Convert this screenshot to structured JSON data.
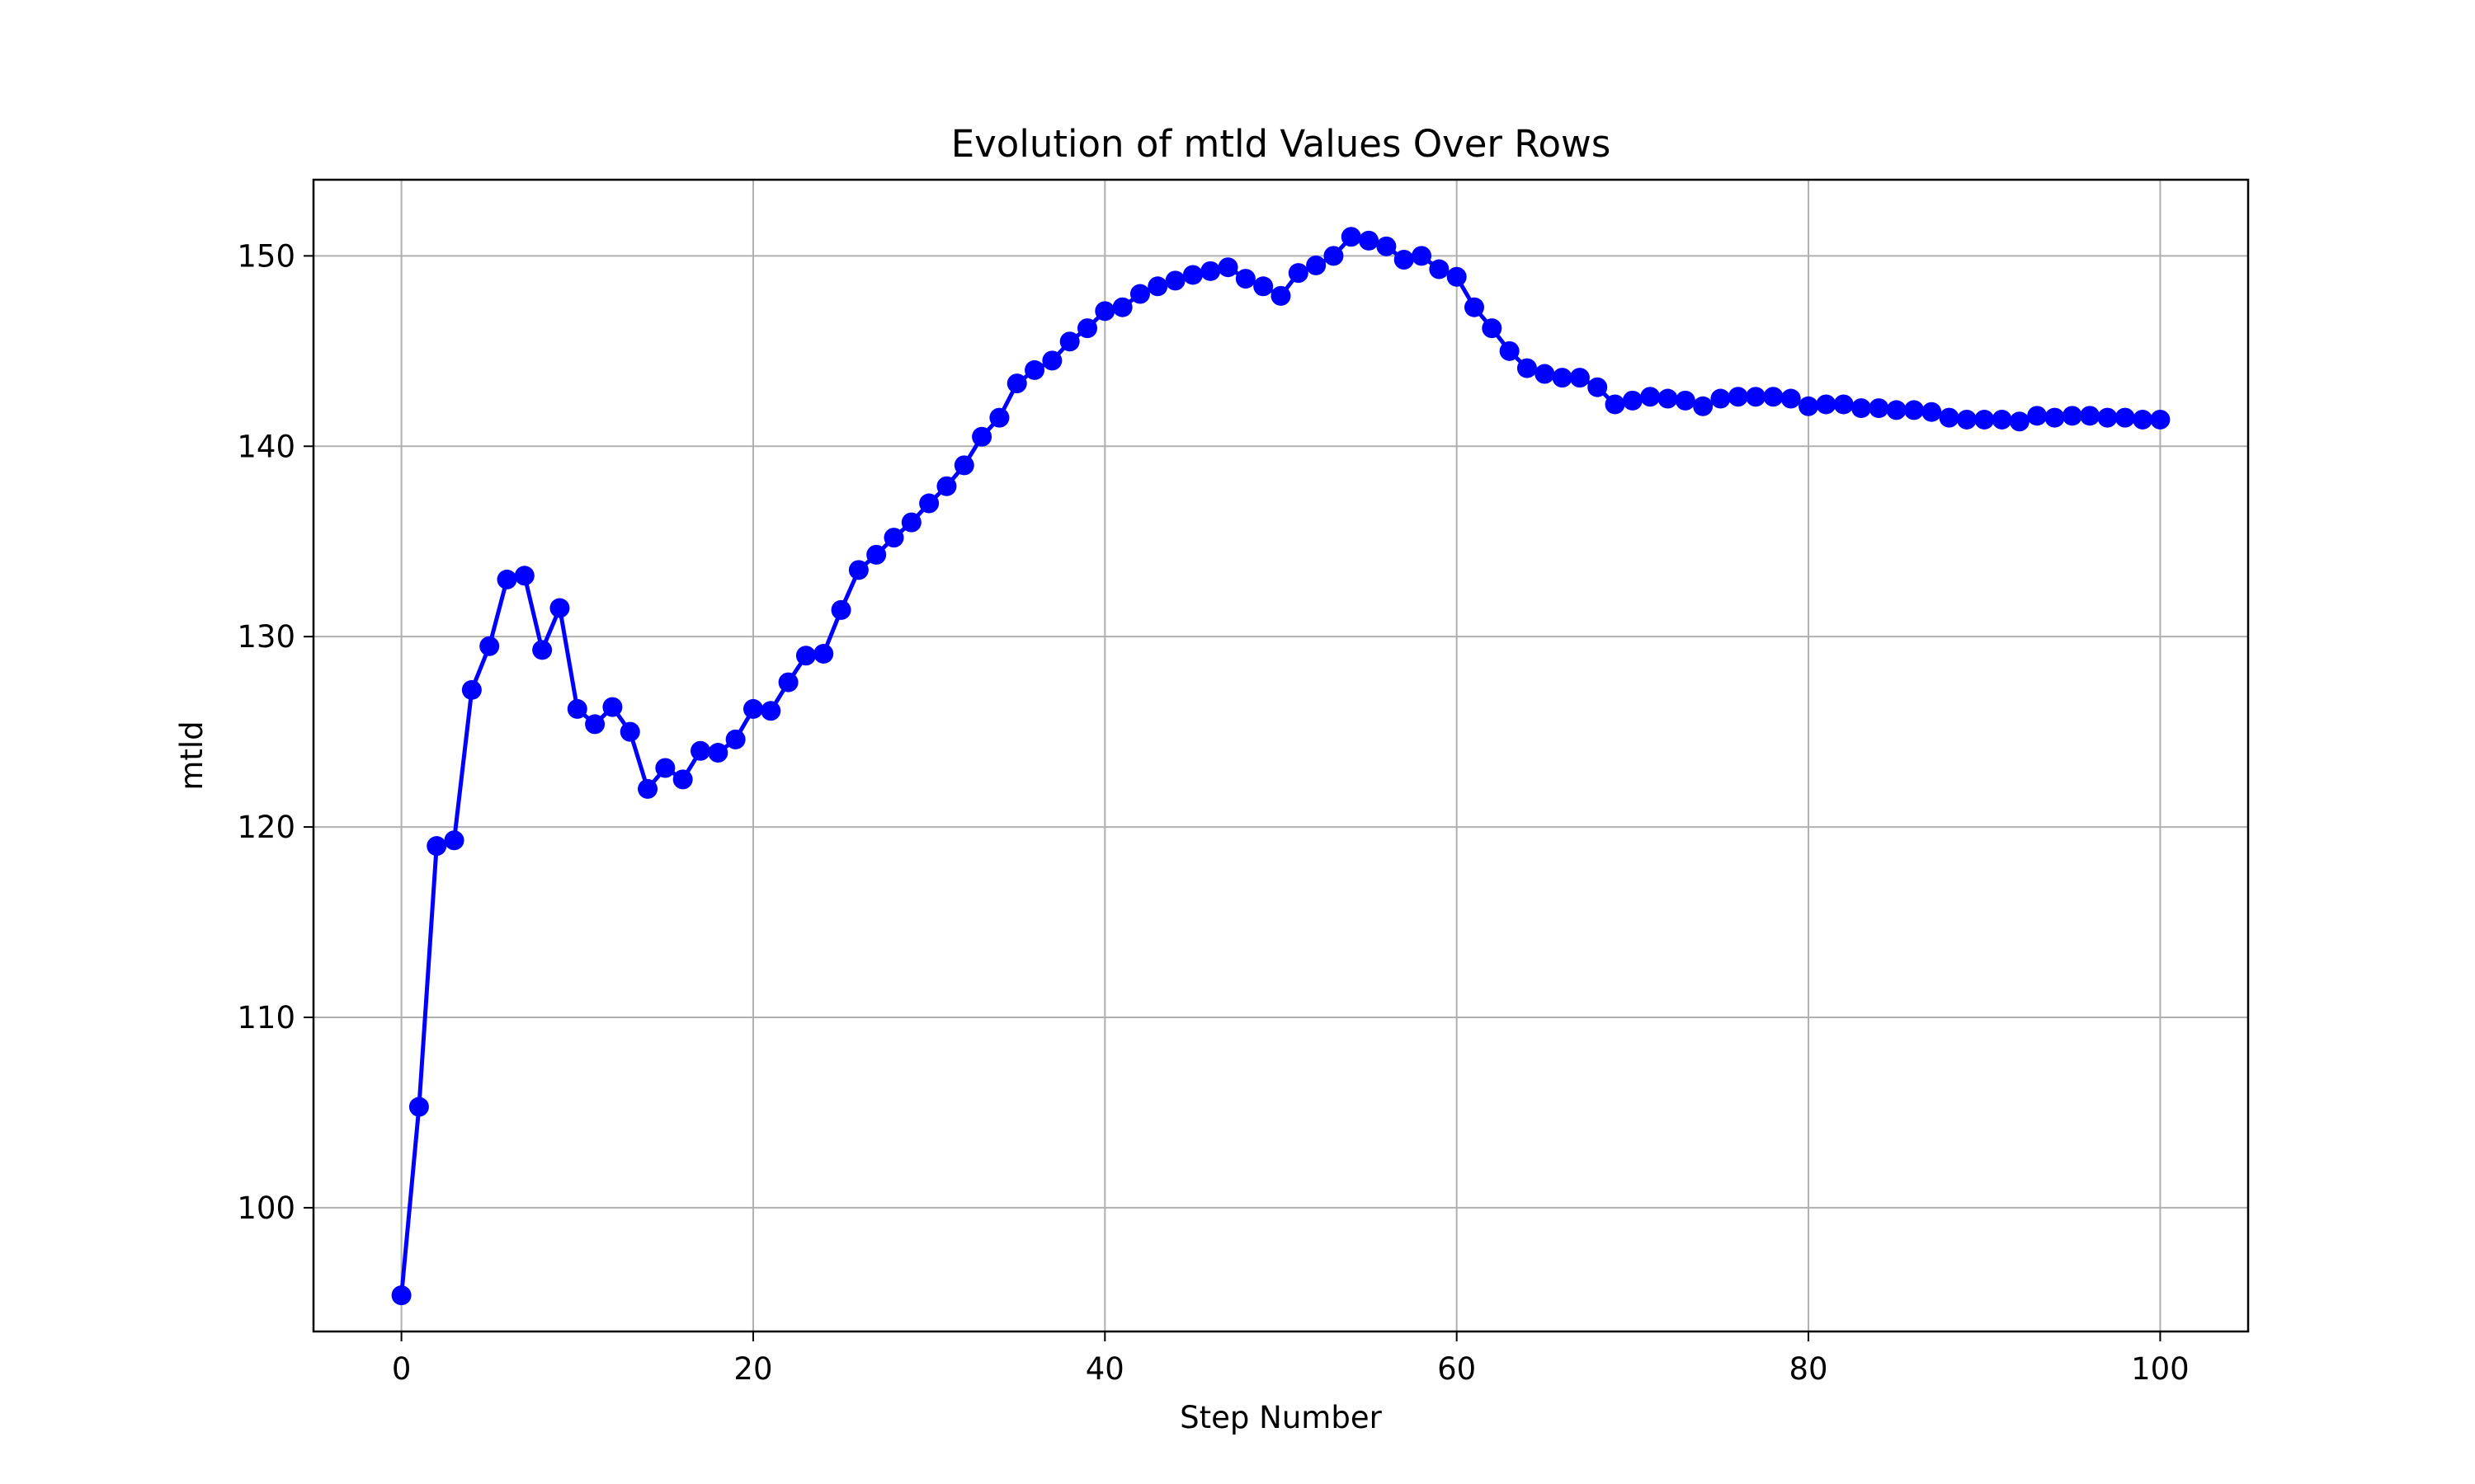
{
  "chart_data": {
    "type": "line",
    "title": "Evolution of mtld Values Over Rows",
    "xlabel": "Step Number",
    "ylabel": "mtld",
    "xlim": [
      -5,
      105
    ],
    "ylim": [
      93.5,
      154
    ],
    "xticks": [
      0,
      20,
      40,
      60,
      80,
      100
    ],
    "yticks": [
      100,
      110,
      120,
      130,
      140,
      150
    ],
    "grid": true,
    "series": [
      {
        "color": "#0000ff",
        "marker": "circle",
        "x": [
          0,
          1,
          2,
          3,
          4,
          5,
          6,
          7,
          8,
          9,
          10,
          11,
          12,
          13,
          14,
          15,
          16,
          17,
          18,
          19,
          20,
          21,
          22,
          23,
          24,
          25,
          26,
          27,
          28,
          29,
          30,
          31,
          32,
          33,
          34,
          35,
          36,
          37,
          38,
          39,
          40,
          41,
          42,
          43,
          44,
          45,
          46,
          47,
          48,
          49,
          50,
          51,
          52,
          53,
          54,
          55,
          56,
          57,
          58,
          59,
          60,
          61,
          62,
          63,
          64,
          65,
          66,
          67,
          68,
          69,
          70,
          71,
          72,
          73,
          74,
          75,
          76,
          77,
          78,
          79,
          80,
          81,
          82,
          83,
          84,
          85,
          86,
          87,
          88,
          89,
          90,
          91,
          92,
          93,
          94,
          95,
          96,
          97,
          98,
          99,
          100
        ],
        "values": [
          95.4,
          105.3,
          119.0,
          119.3,
          127.2,
          129.5,
          133.0,
          133.2,
          129.3,
          131.5,
          126.2,
          125.4,
          126.3,
          125.0,
          122.0,
          123.1,
          122.5,
          124.0,
          123.9,
          124.6,
          126.2,
          126.1,
          127.6,
          129.0,
          129.1,
          131.4,
          133.5,
          134.3,
          135.2,
          136.0,
          137.0,
          137.9,
          139.0,
          140.5,
          141.5,
          143.3,
          144.0,
          144.5,
          145.5,
          146.2,
          147.1,
          147.3,
          148.0,
          148.4,
          148.7,
          149.0,
          149.2,
          149.4,
          148.8,
          148.4,
          147.9,
          149.1,
          149.5,
          150.0,
          151.0,
          150.8,
          150.5,
          149.8,
          150.0,
          149.3,
          148.9,
          147.3,
          146.2,
          145.0,
          144.1,
          143.8,
          143.6,
          143.6,
          143.1,
          142.2,
          142.4,
          142.6,
          142.5,
          142.4,
          142.1,
          142.5,
          142.6,
          142.6,
          142.6,
          142.5,
          142.1,
          142.2,
          142.2,
          142.0,
          142.0,
          141.9,
          141.9,
          141.8,
          141.5,
          141.4,
          141.4,
          141.4,
          141.3,
          141.6,
          141.5,
          141.6,
          141.6,
          141.5,
          141.5,
          141.4,
          141.4
        ]
      }
    ]
  }
}
